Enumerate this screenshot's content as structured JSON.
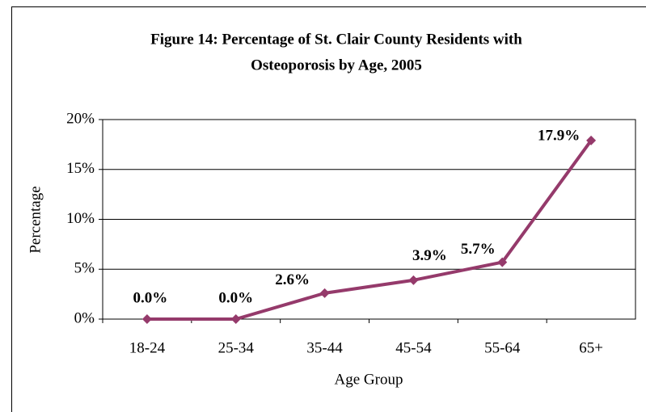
{
  "chart_data": {
    "type": "line",
    "title": [
      "Figure 14:  Percentage of St. Clair County Residents with",
      "Osteoporosis by Age, 2005"
    ],
    "x_label": "Age Group",
    "y_label": "Percentage",
    "categories": [
      "18-24",
      "25-34",
      "35-44",
      "45-54",
      "55-64",
      "65+"
    ],
    "series": [
      {
        "name": "Percentage",
        "color": "#953a6b",
        "values": [
          0,
          0,
          2.6,
          3.9,
          5.7,
          17.9
        ],
        "value_labels": [
          "0.0%",
          "0.0%",
          "2.6%",
          "3.9%",
          "5.7%",
          "17.9%"
        ]
      }
    ],
    "ylim": [
      0,
      20
    ],
    "yticks": [
      {
        "value": 0,
        "label": "0%"
      },
      {
        "value": 5,
        "label": "5%"
      },
      {
        "value": 10,
        "label": "10%"
      },
      {
        "value": 15,
        "label": "15%"
      },
      {
        "value": 20,
        "label": "20%"
      }
    ],
    "grid": true
  }
}
